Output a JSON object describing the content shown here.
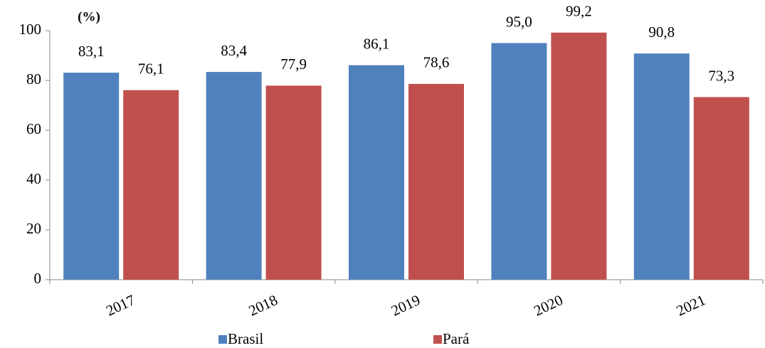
{
  "chart_data": {
    "type": "bar",
    "ylabel": "(%)",
    "categories": [
      "2017",
      "2018",
      "2019",
      "2020",
      "2021"
    ],
    "series": [
      {
        "name": "Brasil",
        "color": "#4f81bd",
        "values": [
          83.1,
          83.4,
          86.1,
          95.0,
          90.8
        ],
        "value_labels": [
          "83,1",
          "83,4",
          "86,1",
          "95,0",
          "90,8"
        ]
      },
      {
        "name": "Pará",
        "color": "#c0504d",
        "values": [
          76.1,
          77.9,
          78.6,
          99.2,
          73.3
        ],
        "value_labels": [
          "76,1",
          "77,9",
          "78,6",
          "99,2",
          "73,3"
        ]
      }
    ],
    "ylim": [
      0,
      100
    ],
    "yticks": [
      0,
      20,
      40,
      60,
      80,
      100
    ],
    "grid": false,
    "legend": "bottom"
  }
}
